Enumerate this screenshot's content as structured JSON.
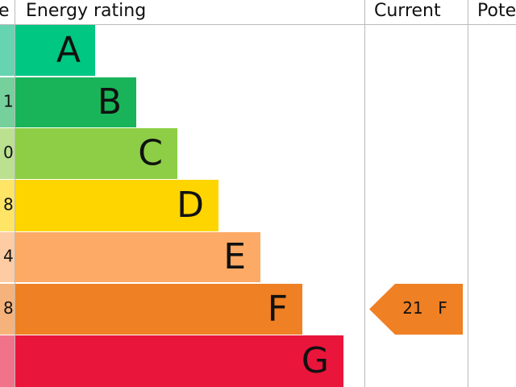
{
  "header": {
    "score": "e",
    "rating": "Energy rating",
    "current": "Current",
    "potential": "Pote"
  },
  "bands": [
    {
      "letter": "A",
      "color": "#00c781",
      "light": "#66d4b0"
    },
    {
      "letter": "B",
      "color": "#19b459",
      "score_label": "1",
      "light": "#75d09b"
    },
    {
      "letter": "C",
      "color": "#8dce46",
      "score_label": "0",
      "light": "#bbe190"
    },
    {
      "letter": "D",
      "color": "#ffd500",
      "score_label": "8",
      "light": "#ffe566"
    },
    {
      "letter": "E",
      "color": "#fcaa65",
      "score_label": "4",
      "light": "#fdcca3"
    },
    {
      "letter": "F",
      "color": "#ef8023",
      "score_label": "8",
      "light": "#f5b37b"
    },
    {
      "letter": "G",
      "color": "#e9153b",
      "light": "#f07389"
    }
  ],
  "current": {
    "score": 21,
    "band": "F",
    "color": "#ef8023"
  }
}
